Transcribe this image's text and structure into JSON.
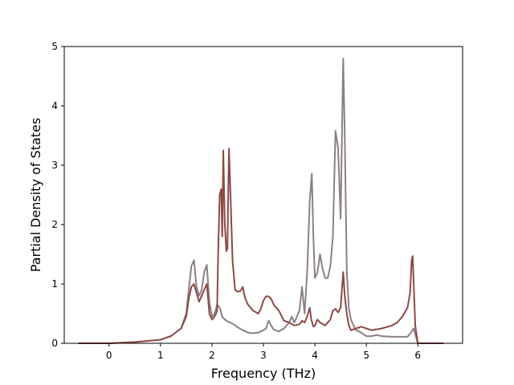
{
  "chart_data": {
    "type": "line",
    "title": "",
    "xlabel": "Frequency (THz)",
    "ylabel": "Partial Density of States",
    "xlim": [
      -0.87,
      6.87
    ],
    "ylim": [
      0,
      5.0
    ],
    "xticks": [
      0,
      1,
      2,
      3,
      4,
      5,
      6
    ],
    "yticks": [
      0,
      1,
      2,
      3,
      4,
      5
    ],
    "grid": false,
    "legend": "none",
    "series": [
      {
        "color": "#8c7f87",
        "x": [
          -0.6,
          0.0,
          0.5,
          1.0,
          1.2,
          1.4,
          1.5,
          1.55,
          1.6,
          1.65,
          1.7,
          1.75,
          1.8,
          1.85,
          1.9,
          1.95,
          2.0,
          2.05,
          2.1,
          2.15,
          2.2,
          2.25,
          2.3,
          2.4,
          2.5,
          2.6,
          2.7,
          2.8,
          2.9,
          3.0,
          3.05,
          3.1,
          3.15,
          3.2,
          3.3,
          3.4,
          3.5,
          3.55,
          3.6,
          3.7,
          3.75,
          3.8,
          3.85,
          3.9,
          3.94,
          3.97,
          4.0,
          4.05,
          4.1,
          4.15,
          4.2,
          4.25,
          4.3,
          4.35,
          4.4,
          4.45,
          4.5,
          4.55,
          4.58,
          4.62,
          4.66,
          4.7,
          4.75,
          4.8,
          4.9,
          5.0,
          5.1,
          5.2,
          5.3,
          5.5,
          5.7,
          5.8,
          5.88,
          5.92,
          5.95,
          6.0,
          6.5
        ],
        "y": [
          0,
          0,
          0.02,
          0.06,
          0.12,
          0.25,
          0.5,
          0.9,
          1.3,
          1.4,
          0.95,
          0.8,
          0.9,
          1.2,
          1.32,
          0.7,
          0.45,
          0.5,
          0.65,
          0.6,
          0.45,
          0.4,
          0.37,
          0.33,
          0.27,
          0.22,
          0.18,
          0.17,
          0.18,
          0.22,
          0.25,
          0.38,
          0.3,
          0.23,
          0.2,
          0.25,
          0.35,
          0.45,
          0.35,
          0.55,
          0.95,
          0.5,
          1.2,
          2.4,
          2.86,
          1.8,
          1.1,
          1.2,
          1.5,
          1.25,
          1.1,
          1.1,
          1.3,
          1.8,
          3.58,
          3.3,
          2.1,
          4.8,
          3.5,
          1.2,
          0.6,
          0.4,
          0.3,
          0.22,
          0.18,
          0.12,
          0.12,
          0.14,
          0.12,
          0.11,
          0.11,
          0.11,
          0.2,
          0.25,
          0.15,
          0,
          0
        ]
      },
      {
        "color": "#8c4a44",
        "x": [
          -0.6,
          0.0,
          0.5,
          1.0,
          1.2,
          1.4,
          1.5,
          1.55,
          1.6,
          1.65,
          1.7,
          1.75,
          1.8,
          1.85,
          1.9,
          1.95,
          2.0,
          2.05,
          2.08,
          2.1,
          2.12,
          2.15,
          2.18,
          2.2,
          2.22,
          2.25,
          2.28,
          2.3,
          2.33,
          2.36,
          2.4,
          2.45,
          2.5,
          2.55,
          2.6,
          2.62,
          2.65,
          2.7,
          2.8,
          2.9,
          2.95,
          3.0,
          3.05,
          3.1,
          3.15,
          3.2,
          3.3,
          3.4,
          3.5,
          3.6,
          3.7,
          3.75,
          3.8,
          3.85,
          3.9,
          3.93,
          3.97,
          4.0,
          4.05,
          4.1,
          4.2,
          4.3,
          4.35,
          4.4,
          4.45,
          4.5,
          4.55,
          4.58,
          4.62,
          4.66,
          4.7,
          4.8,
          4.9,
          5.0,
          5.1,
          5.3,
          5.5,
          5.6,
          5.7,
          5.8,
          5.85,
          5.88,
          5.9,
          5.92,
          5.95,
          6.0,
          6.5
        ],
        "y": [
          0,
          0,
          0.02,
          0.06,
          0.12,
          0.25,
          0.45,
          0.75,
          0.95,
          1.0,
          0.85,
          0.7,
          0.8,
          0.9,
          1.0,
          0.5,
          0.4,
          0.45,
          0.5,
          0.55,
          1.5,
          2.5,
          2.6,
          1.8,
          3.25,
          2.0,
          1.55,
          1.6,
          3.28,
          2.5,
          1.4,
          0.9,
          0.87,
          0.88,
          0.95,
          0.85,
          0.75,
          0.65,
          0.55,
          0.5,
          0.58,
          0.72,
          0.79,
          0.79,
          0.75,
          0.65,
          0.55,
          0.38,
          0.35,
          0.3,
          0.32,
          0.38,
          0.35,
          0.45,
          0.6,
          0.4,
          0.28,
          0.3,
          0.4,
          0.35,
          0.3,
          0.4,
          0.55,
          0.58,
          0.52,
          0.6,
          1.2,
          0.8,
          0.5,
          0.3,
          0.22,
          0.25,
          0.28,
          0.25,
          0.22,
          0.25,
          0.3,
          0.35,
          0.45,
          0.6,
          0.85,
          1.4,
          1.47,
          1.0,
          0.3,
          0,
          0
        ]
      }
    ]
  }
}
